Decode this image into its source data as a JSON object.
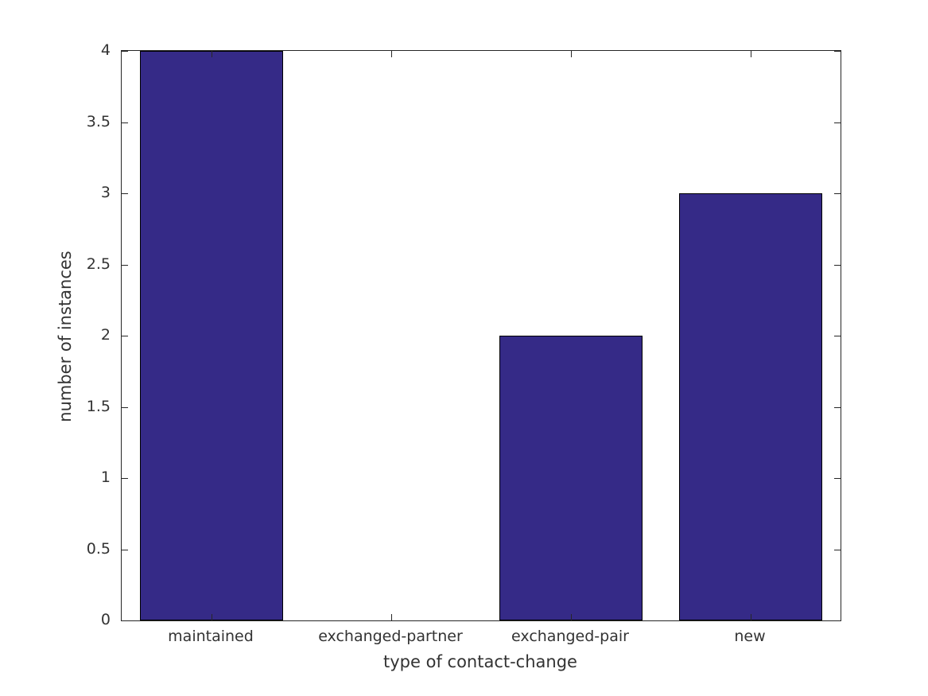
{
  "figure": {
    "background_color": "#ffffff",
    "title": ""
  },
  "chart_data": {
    "type": "bar",
    "title": "",
    "xlabel": "type of contact-change",
    "ylabel": "number of instances",
    "categories": [
      "maintained",
      "exchanged-partner",
      "exchanged-pair",
      "new"
    ],
    "values": [
      4,
      0,
      2,
      3
    ],
    "ylim": [
      0,
      4
    ],
    "yticks": [
      0,
      0.5,
      1,
      1.5,
      2,
      2.5,
      3,
      3.5,
      4
    ],
    "ytick_labels": [
      "0",
      "0.5",
      "1",
      "1.5",
      "2",
      "2.5",
      "3",
      "3.5",
      "4"
    ],
    "bar_width_fraction": 0.8,
    "bar_color": "#352a87",
    "bar_edge_color": "#000000",
    "axis_color": "#262626",
    "text_color": "#333333",
    "grid": false,
    "legend": null,
    "tick_direction": "in",
    "box": true
  }
}
